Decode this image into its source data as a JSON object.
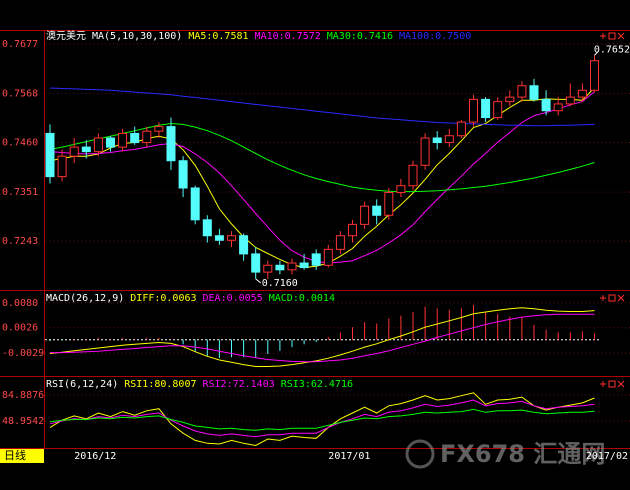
{
  "chart_data": [
    {
      "type": "candlestick",
      "title": "澳元美元",
      "indicator": "MA(5,10,30,100)",
      "categories": [
        null,
        null,
        "2016/12",
        null,
        null,
        null,
        null,
        null,
        null,
        null,
        null,
        null,
        null,
        null,
        null,
        null,
        null,
        null,
        null,
        null,
        null,
        null,
        null,
        "2017/01",
        null,
        null,
        null,
        null,
        null,
        null,
        null,
        null,
        null,
        null,
        null,
        null,
        null,
        null,
        null,
        null,
        null,
        null,
        null,
        null,
        null,
        "2017/02"
      ],
      "open": [
        0.748,
        0.7385,
        0.743,
        0.745,
        0.744,
        0.747,
        0.745,
        0.748,
        0.746,
        0.7485,
        0.7495,
        0.742,
        0.736,
        0.729,
        0.7255,
        0.7245,
        0.7255,
        0.7215,
        0.7175,
        0.719,
        0.718,
        0.7195,
        0.7215,
        0.719,
        0.7225,
        0.7255,
        0.728,
        0.732,
        0.73,
        0.735,
        0.7365,
        0.741,
        0.747,
        0.746,
        0.7475,
        0.7505,
        0.7555,
        0.7515,
        0.755,
        0.756,
        0.7585,
        0.7555,
        0.753,
        0.7545,
        0.756,
        0.7575
      ],
      "high": [
        0.75,
        0.7445,
        0.747,
        0.7465,
        0.748,
        0.7475,
        0.749,
        0.7495,
        0.7495,
        0.7505,
        0.7515,
        0.743,
        0.7365,
        0.73,
        0.727,
        0.7265,
        0.726,
        0.723,
        0.72,
        0.72,
        0.7205,
        0.7215,
        0.7225,
        0.7235,
        0.7265,
        0.729,
        0.733,
        0.7335,
        0.736,
        0.738,
        0.742,
        0.748,
        0.7485,
        0.749,
        0.751,
        0.7565,
        0.756,
        0.756,
        0.7575,
        0.7595,
        0.76,
        0.7575,
        0.756,
        0.759,
        0.759,
        0.7652
      ],
      "low": [
        0.737,
        0.7375,
        0.7415,
        0.7425,
        0.743,
        0.744,
        0.744,
        0.7455,
        0.745,
        0.747,
        0.74,
        0.734,
        0.728,
        0.724,
        0.7235,
        0.723,
        0.72,
        0.716,
        0.716,
        0.717,
        0.717,
        0.718,
        0.718,
        0.7185,
        0.7215,
        0.724,
        0.727,
        0.728,
        0.729,
        0.734,
        0.7355,
        0.74,
        0.7445,
        0.745,
        0.747,
        0.7495,
        0.7505,
        0.751,
        0.754,
        0.755,
        0.755,
        0.752,
        0.752,
        0.754,
        0.755,
        0.757
      ],
      "close": [
        0.7385,
        0.743,
        0.745,
        0.744,
        0.747,
        0.745,
        0.748,
        0.746,
        0.7485,
        0.7495,
        0.742,
        0.736,
        0.729,
        0.7255,
        0.7245,
        0.7255,
        0.7215,
        0.7175,
        0.719,
        0.718,
        0.7195,
        0.7185,
        0.719,
        0.7225,
        0.7255,
        0.728,
        0.732,
        0.73,
        0.735,
        0.7365,
        0.741,
        0.747,
        0.746,
        0.7475,
        0.7505,
        0.7555,
        0.7515,
        0.755,
        0.756,
        0.7585,
        0.7555,
        0.753,
        0.7545,
        0.756,
        0.7575,
        0.764
      ],
      "up_color": "#ff3232",
      "down_color": "#54fcfc",
      "series": [
        {
          "name": "MA5:0.7581",
          "color": "#ffff00",
          "values": [
            0.742,
            0.7425,
            0.743,
            0.743,
            0.7435,
            0.7448,
            0.7458,
            0.746,
            0.7469,
            0.7474,
            0.7468,
            0.7444,
            0.741,
            0.7364,
            0.7314,
            0.7281,
            0.7252,
            0.7229,
            0.7216,
            0.7203,
            0.7191,
            0.7185,
            0.7188,
            0.7195,
            0.721,
            0.7227,
            0.7254,
            0.7276,
            0.7301,
            0.7323,
            0.7349,
            0.7379,
            0.7411,
            0.7436,
            0.7464,
            0.7493,
            0.7502,
            0.752,
            0.7537,
            0.7553,
            0.7553,
            0.7556,
            0.7555,
            0.7555,
            0.7553,
            0.7581
          ]
        },
        {
          "name": "MA10:0.7572",
          "color": "#ff00ff",
          "values": [
            0.744,
            0.7438,
            0.7436,
            0.7435,
            0.7436,
            0.7438,
            0.7442,
            0.7445,
            0.745,
            0.7455,
            0.7458,
            0.7451,
            0.7435,
            0.7416,
            0.7393,
            0.7365,
            0.7335,
            0.7304,
            0.7274,
            0.7245,
            0.7222,
            0.7208,
            0.7198,
            0.7195,
            0.7197,
            0.72,
            0.7211,
            0.7223,
            0.7239,
            0.7257,
            0.7279,
            0.7308,
            0.7335,
            0.7361,
            0.7386,
            0.7413,
            0.7436,
            0.7461,
            0.7482,
            0.7504,
            0.7519,
            0.7526,
            0.7534,
            0.7543,
            0.755,
            0.7572
          ]
        },
        {
          "name": "MA30:0.7416",
          "color": "#00ff00",
          "values": [
            0.7445,
            0.745,
            0.7456,
            0.7462,
            0.7468,
            0.7474,
            0.748,
            0.7486,
            0.7492,
            0.7498,
            0.7502,
            0.75,
            0.7494,
            0.7486,
            0.7476,
            0.7464,
            0.745,
            0.7436,
            0.7422,
            0.741,
            0.7399,
            0.7389,
            0.7381,
            0.7374,
            0.7368,
            0.7362,
            0.7358,
            0.7355,
            0.7353,
            0.7352,
            0.7352,
            0.7353,
            0.7354,
            0.7356,
            0.7358,
            0.7361,
            0.7364,
            0.7368,
            0.7372,
            0.7377,
            0.7382,
            0.7388,
            0.7394,
            0.7401,
            0.7408,
            0.7416
          ]
        },
        {
          "name": "MA100:0.7500",
          "color": "#2a2aff",
          "values": [
            0.758,
            0.7579,
            0.7578,
            0.7577,
            0.7576,
            0.7575,
            0.7573,
            0.7571,
            0.7569,
            0.7567,
            0.7565,
            0.7562,
            0.7559,
            0.7556,
            0.7553,
            0.755,
            0.7547,
            0.7544,
            0.7541,
            0.7538,
            0.7535,
            0.7532,
            0.7529,
            0.7526,
            0.7523,
            0.752,
            0.7517,
            0.7514,
            0.7512,
            0.751,
            0.7508,
            0.7506,
            0.7504,
            0.7503,
            0.7502,
            0.7501,
            0.75,
            0.7499,
            0.7498,
            0.7498,
            0.7497,
            0.7497,
            0.7498,
            0.7498,
            0.7499,
            0.75
          ]
        }
      ],
      "annotations": [
        {
          "value": 0.7652,
          "label": "0.7652"
        },
        {
          "value": 0.716,
          "label": "0.7160"
        }
      ],
      "ylim": [
        0.714,
        0.769
      ],
      "yticks": [
        0.7677,
        0.7568,
        {
          "value": 0.746,
          "label": "0.7460"
        },
        0.7351,
        0.7243
      ],
      "grid": true
    },
    {
      "type": "macd",
      "indicator": "MACD(26,12,9)",
      "histogram": {
        "name": "MACD:0.0014",
        "color": "#00ff00",
        "up_color": "#ff3232",
        "down_color": "#54fcfc",
        "values": [
          -0.0003,
          -0.0002,
          0.0002,
          0.0002,
          0.0004,
          0.0002,
          0.0004,
          0.0002,
          0.0004,
          0.0004,
          0.0001,
          -0.001,
          -0.0026,
          -0.0036,
          -0.004,
          -0.0038,
          -0.0038,
          -0.004,
          -0.0031,
          -0.0024,
          -0.0016,
          -0.001,
          -0.0005,
          0.0006,
          0.0016,
          0.0027,
          0.0038,
          0.0035,
          0.0046,
          0.0052,
          0.006,
          0.0072,
          0.0068,
          0.0065,
          0.0068,
          0.0075,
          0.006,
          0.0056,
          0.005,
          0.0048,
          0.0032,
          0.0022,
          0.0016,
          0.0016,
          0.0018,
          0.0014
        ]
      },
      "series": [
        {
          "name": "DIFF:0.0063",
          "color": "#ffff00",
          "values": [
            -0.003,
            -0.0027,
            -0.0024,
            -0.0021,
            -0.0018,
            -0.0015,
            -0.0012,
            -0.001,
            -0.0008,
            -0.0006,
            -0.0008,
            -0.0015,
            -0.0026,
            -0.0036,
            -0.0044,
            -0.0049,
            -0.0054,
            -0.0058,
            -0.0058,
            -0.0057,
            -0.0054,
            -0.005,
            -0.0046,
            -0.004,
            -0.0033,
            -0.0025,
            -0.0016,
            -0.0009,
            0.0,
            0.0008,
            0.0017,
            0.0027,
            0.0034,
            0.0041,
            0.0048,
            0.0056,
            0.006,
            0.0064,
            0.0067,
            0.0069,
            0.0067,
            0.0064,
            0.0062,
            0.0061,
            0.0061,
            0.0063
          ]
        },
        {
          "name": "DEA:0.0055",
          "color": "#ff00ff",
          "values": [
            -0.0028,
            -0.0028,
            -0.0027,
            -0.0026,
            -0.0025,
            -0.0023,
            -0.0021,
            -0.0019,
            -0.0017,
            -0.0015,
            -0.0013,
            -0.0013,
            -0.0016,
            -0.002,
            -0.0025,
            -0.003,
            -0.0035,
            -0.0039,
            -0.0043,
            -0.0045,
            -0.0047,
            -0.0048,
            -0.0048,
            -0.0046,
            -0.0044,
            -0.004,
            -0.0035,
            -0.003,
            -0.0024,
            -0.0017,
            -0.001,
            -0.0003,
            0.0005,
            0.0012,
            0.0019,
            0.0026,
            0.0033,
            0.0039,
            0.0044,
            0.0049,
            0.0052,
            0.0054,
            0.0055,
            0.0055,
            0.0055,
            0.0055
          ]
        }
      ],
      "ylim": [
        -0.007,
        0.0099
      ],
      "yticks": [
        {
          "value": 0.008,
          "label": "0.0080"
        },
        0.0026,
        -0.0029
      ],
      "grid": true
    },
    {
      "type": "line",
      "indicator": "RSI(6,12,24)",
      "series": [
        {
          "name": "RSI1:80.8007",
          "color": "#ffff00",
          "values": [
            40,
            50,
            56,
            52,
            60,
            55,
            62,
            57,
            63,
            66,
            45,
            32,
            22,
            18,
            17,
            22,
            18,
            15,
            24,
            22,
            28,
            26,
            25,
            40,
            52,
            60,
            68,
            60,
            70,
            73,
            78,
            84,
            78,
            80,
            84,
            88,
            72,
            78,
            79,
            82,
            70,
            64,
            68,
            71,
            74,
            80.8007
          ]
        },
        {
          "name": "RSI2:72.1403",
          "color": "#ff00ff",
          "values": [
            45,
            49,
            52,
            51,
            55,
            53,
            57,
            55,
            58,
            60,
            50,
            42,
            35,
            31,
            29,
            31,
            29,
            27,
            30,
            30,
            32,
            32,
            32,
            40,
            47,
            52,
            58,
            55,
            61,
            63,
            67,
            72,
            69,
            71,
            74,
            78,
            70,
            73,
            74,
            76,
            70,
            66,
            68,
            69,
            70,
            72.1403
          ]
        },
        {
          "name": "RSI3:62.4716",
          "color": "#00ff00",
          "values": [
            48,
            50,
            51,
            51,
            53,
            52,
            54,
            53,
            55,
            56,
            51,
            47,
            42,
            40,
            38,
            39,
            37,
            36,
            38,
            37,
            39,
            39,
            39,
            43,
            47,
            50,
            53,
            52,
            55,
            56,
            58,
            61,
            60,
            61,
            62,
            65,
            61,
            63,
            63,
            64,
            61,
            59,
            60,
            61,
            61,
            62.4716
          ]
        }
      ],
      "ylim": [
        12.9,
        105.7
      ],
      "yticks": [
        84.8876,
        48.9542
      ],
      "grid": true
    }
  ],
  "period": "日线",
  "watermark": "FX678 汇通网"
}
